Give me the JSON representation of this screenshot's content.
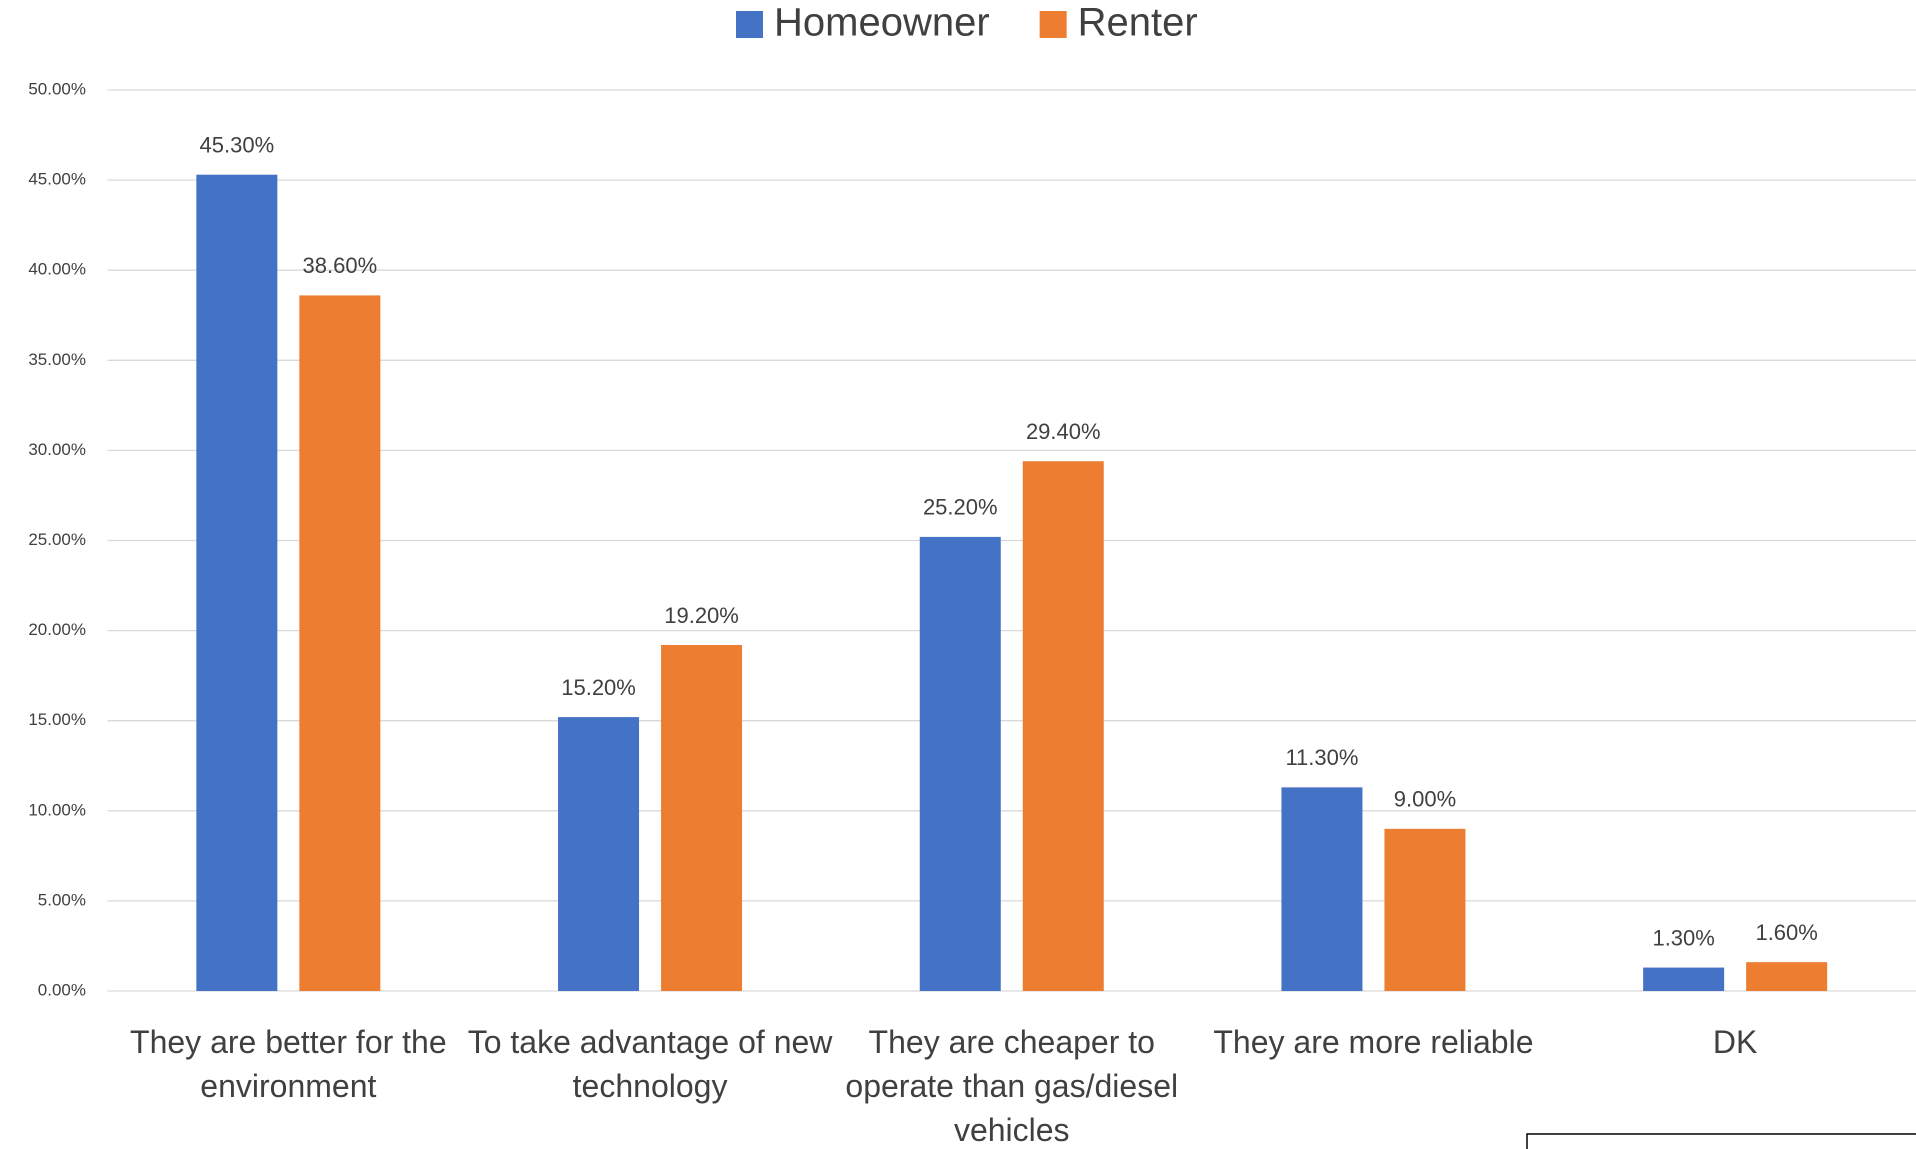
{
  "chart_data": {
    "type": "bar",
    "categories": [
      "They are better for the environment",
      "To take advantage of new technology",
      "They are cheaper to operate than gas/diesel vehicles",
      "They are more reliable",
      "DK"
    ],
    "series": [
      {
        "name": "Homeowner",
        "color": "#4472c4",
        "values": [
          45.3,
          15.2,
          25.2,
          11.3,
          1.3
        ],
        "value_labels": [
          "45.30%",
          "15.20%",
          "25.20%",
          "11.30%",
          "1.30%"
        ]
      },
      {
        "name": "Renter",
        "color": "#ed7d31",
        "values": [
          38.6,
          19.2,
          29.4,
          9.0,
          1.6
        ],
        "value_labels": [
          "38.60%",
          "19.20%",
          "29.40%",
          "9.00%",
          "1.60%"
        ]
      }
    ],
    "ylim": [
      0,
      50
    ],
    "yticks": [
      {
        "value": 0,
        "label": "0.00%"
      },
      {
        "value": 5,
        "label": "5.00%"
      },
      {
        "value": 10,
        "label": "10.00%"
      },
      {
        "value": 15,
        "label": "15.00%"
      },
      {
        "value": 20,
        "label": "20.00%"
      },
      {
        "value": 25,
        "label": "25.00%"
      },
      {
        "value": 30,
        "label": "30.00%"
      },
      {
        "value": 35,
        "label": "35.00%"
      },
      {
        "value": 40,
        "label": "40.00%"
      },
      {
        "value": 45,
        "label": "45.00%"
      },
      {
        "value": 50,
        "label": "50.00%"
      }
    ],
    "grid": true,
    "legend": "top"
  }
}
